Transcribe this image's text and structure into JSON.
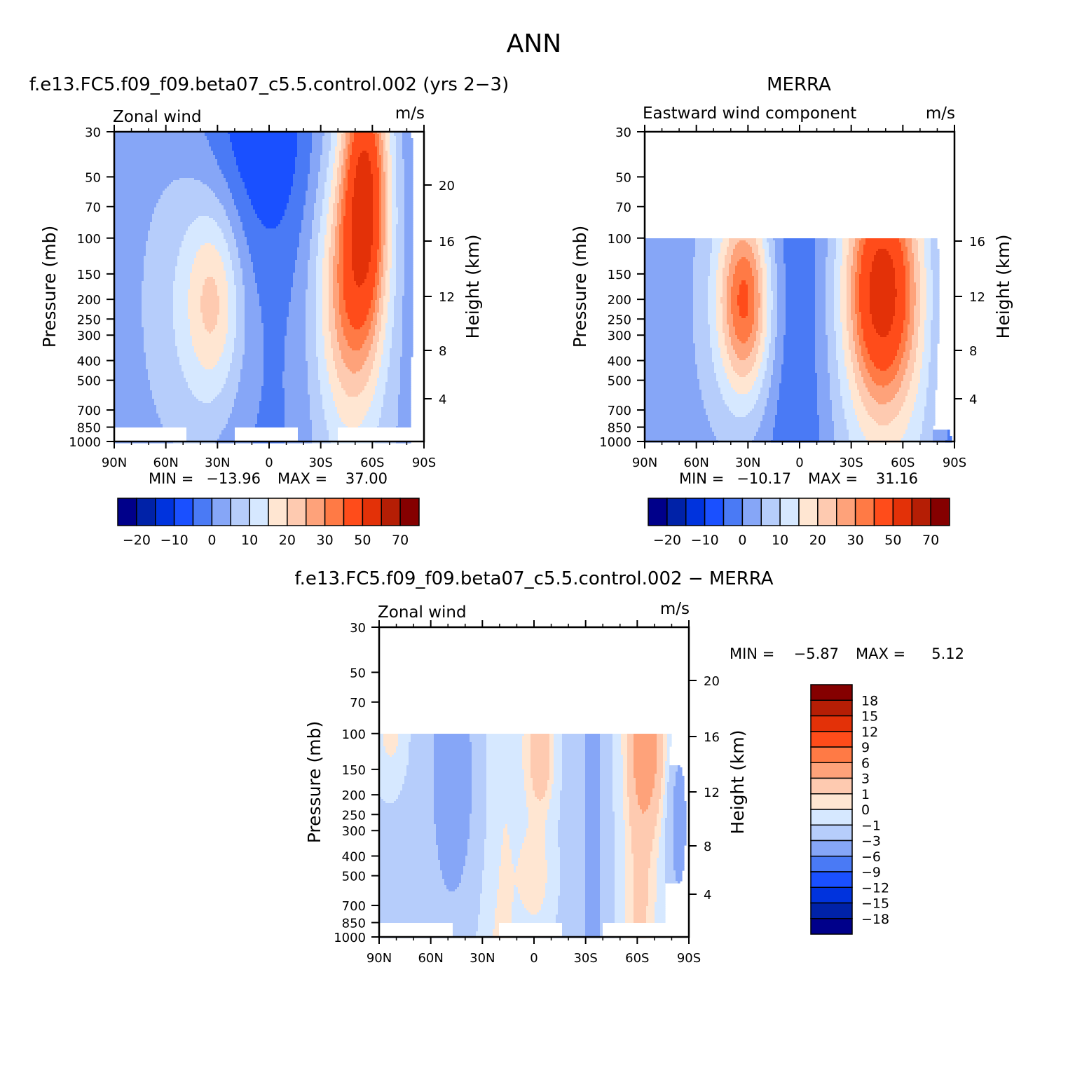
{
  "figure": {
    "title": "ANN"
  },
  "colors": {
    "abs": [
      "#00008a",
      "#0022a8",
      "#0033dd",
      "#1a50ff",
      "#4a7af5",
      "#86a6f7",
      "#b6cdfb",
      "#d6e8ff",
      "#ffe6d2",
      "#fecab0",
      "#fea27a",
      "#ff7a45",
      "#ff4c1a",
      "#e33108",
      "#b51e05",
      "#850000"
    ],
    "diff": [
      "#00008a",
      "#0022a8",
      "#0033dd",
      "#1a50ff",
      "#4a7af5",
      "#86a6f7",
      "#b6cdfb",
      "#d6e8ff",
      "#ffe6d2",
      "#fecab0",
      "#fea27a",
      "#ff7a45",
      "#ff4c1a",
      "#e33108",
      "#b51e05",
      "#850000"
    ]
  },
  "chart_data": [
    {
      "type": "heatmap",
      "title": "f.e13.FC5.f09_f09.beta07_c5.5.control.002 (yrs 2−3)",
      "left_label": "Zonal wind",
      "units": "m/s",
      "xlabel": "",
      "ylabel": "Pressure (mb)",
      "ylabel_right": "Height (km)",
      "x_ticks": [
        "90N",
        "60N",
        "30N",
        "0",
        "30S",
        "60S",
        "90S"
      ],
      "y_ticks": [
        "30",
        "50",
        "70",
        "100",
        "150",
        "200",
        "250",
        "300",
        "400",
        "500",
        "700",
        "850",
        "1000"
      ],
      "y_right_ticks": [
        "20",
        "16",
        "12",
        "8",
        "4"
      ],
      "ylim": [
        1000,
        30
      ],
      "stats": {
        "min_label": "MIN =",
        "min": "−13.96",
        "max_label": "MAX =",
        "max": "37.00"
      },
      "colorbar_labels": [
        "−20",
        "−10",
        "0",
        "10",
        "20",
        "30",
        "50",
        "70"
      ],
      "field": "model"
    },
    {
      "type": "heatmap",
      "title": "MERRA",
      "left_label": "Eastward wind component",
      "units": "m/s",
      "xlabel": "",
      "ylabel": "Pressure (mb)",
      "ylabel_right": "Height (km)",
      "x_ticks": [
        "90N",
        "60N",
        "30N",
        "0",
        "30S",
        "60S",
        "90S"
      ],
      "y_ticks": [
        "30",
        "50",
        "70",
        "100",
        "150",
        "200",
        "250",
        "300",
        "400",
        "500",
        "700",
        "850",
        "1000"
      ],
      "y_right_ticks": [
        "16",
        "12",
        "8",
        "4"
      ],
      "ylim": [
        1000,
        30
      ],
      "data_top_pressure": 100,
      "stats": {
        "min_label": "MIN =",
        "min": "−10.17",
        "max_label": "MAX =",
        "max": "31.16"
      },
      "colorbar_labels": [
        "−20",
        "−10",
        "0",
        "10",
        "20",
        "30",
        "50",
        "70"
      ],
      "field": "merra"
    },
    {
      "type": "heatmap",
      "title": "f.e13.FC5.f09_f09.beta07_c5.5.control.002 − MERRA",
      "left_label": "Zonal wind",
      "units": "m/s",
      "xlabel": "",
      "ylabel": "Pressure (mb)",
      "ylabel_right": "Height (km)",
      "x_ticks": [
        "90N",
        "60N",
        "30N",
        "0",
        "30S",
        "60S",
        "90S"
      ],
      "y_ticks": [
        "30",
        "50",
        "70",
        "100",
        "150",
        "200",
        "250",
        "300",
        "400",
        "500",
        "700",
        "850",
        "1000"
      ],
      "y_right_ticks": [
        "20",
        "16",
        "12",
        "8",
        "4"
      ],
      "ylim": [
        1000,
        30
      ],
      "data_top_pressure": 100,
      "stats": {
        "min_label": "MIN =",
        "min": "−5.87",
        "max_label": "MAX =",
        "max": "5.12"
      },
      "colorbar_labels": [
        "18",
        "15",
        "12",
        "9",
        "6",
        "3",
        "1",
        "0",
        "−1",
        "−3",
        "−6",
        "−9",
        "−12",
        "−15",
        "−18"
      ],
      "field": "diff"
    }
  ]
}
